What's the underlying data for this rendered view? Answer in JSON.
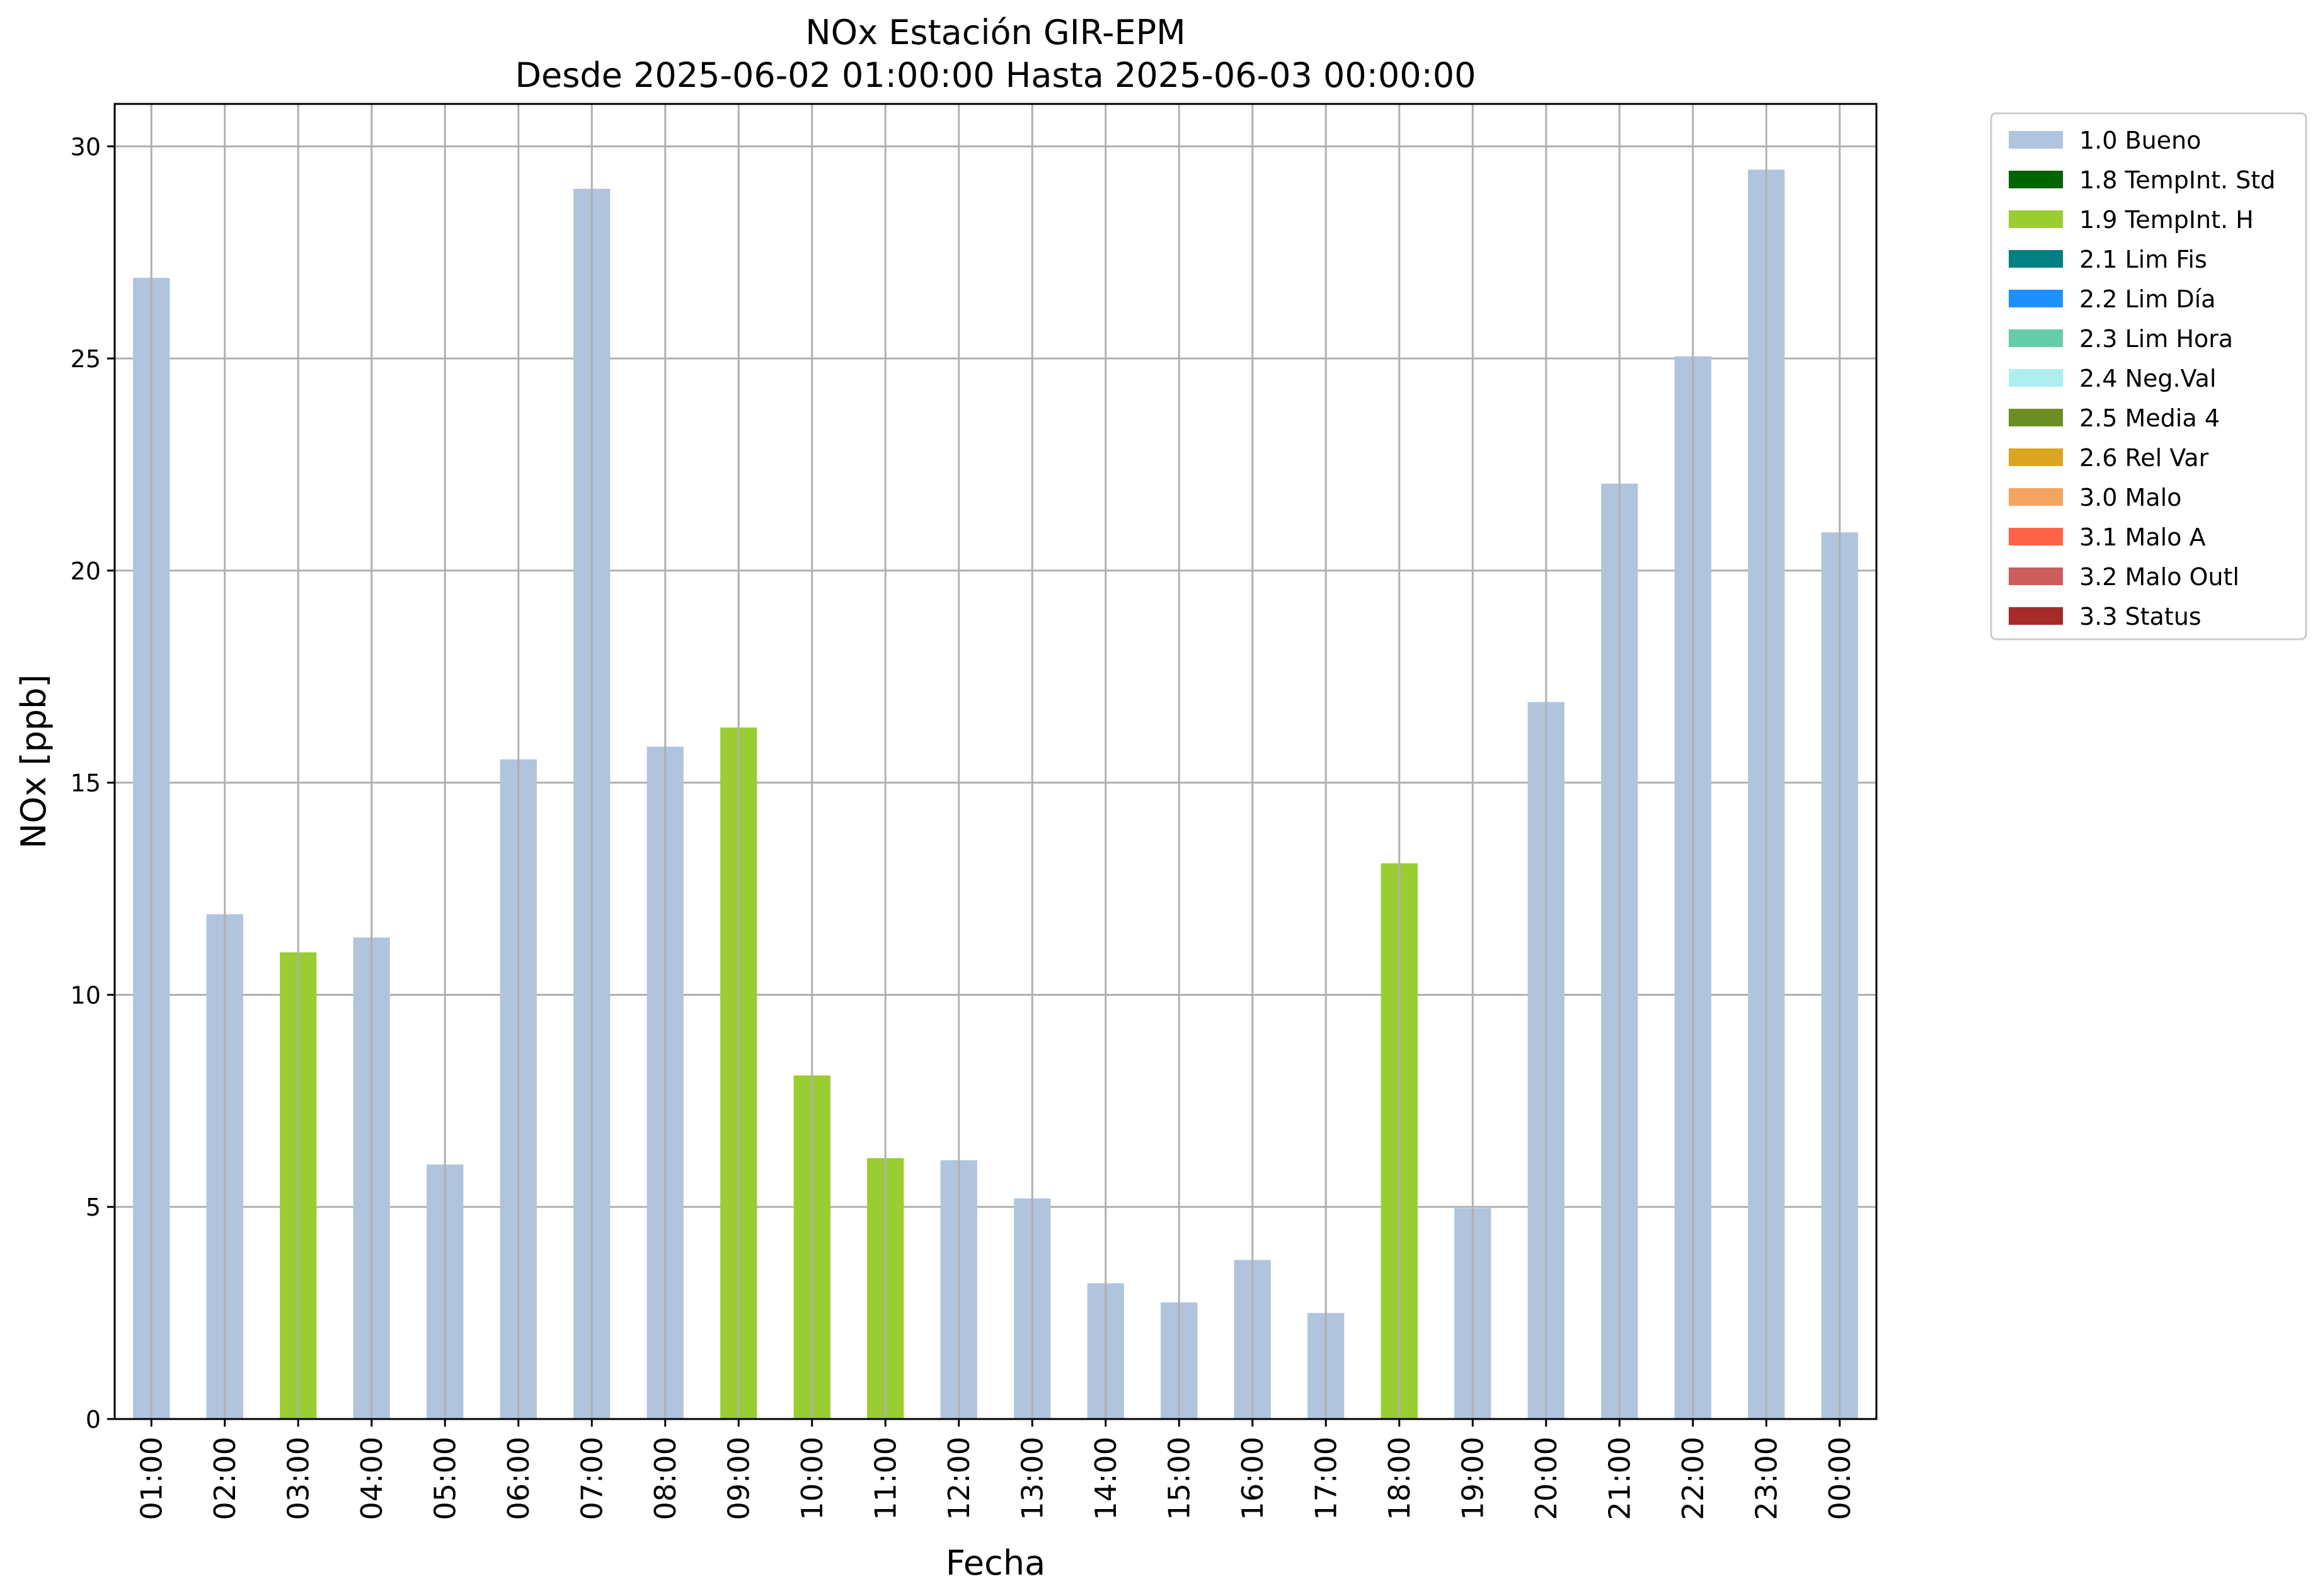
{
  "chart_data": {
    "type": "bar",
    "title": "NOx Estación GIR-EPM",
    "subtitle": "Desde 2025-06-02 01:00:00 Hasta 2025-06-03 00:00:00",
    "xlabel": "Fecha",
    "ylabel": "NOx [ppb]",
    "ylim": [
      0,
      31
    ],
    "yticks": [
      0,
      5,
      10,
      15,
      20,
      25,
      30
    ],
    "grid": true,
    "legend_placement": "outside-top-right",
    "categories": [
      "01:00",
      "02:00",
      "03:00",
      "04:00",
      "05:00",
      "06:00",
      "07:00",
      "08:00",
      "09:00",
      "10:00",
      "11:00",
      "12:00",
      "13:00",
      "14:00",
      "15:00",
      "16:00",
      "17:00",
      "18:00",
      "19:00",
      "20:00",
      "21:00",
      "22:00",
      "23:00",
      "00:00"
    ],
    "values": [
      26.9,
      11.9,
      11.0,
      11.35,
      6.0,
      15.55,
      29.0,
      15.85,
      16.3,
      8.1,
      6.15,
      6.1,
      5.2,
      3.2,
      2.75,
      3.75,
      2.5,
      13.1,
      4.97,
      16.9,
      22.05,
      25.05,
      29.45,
      20.9
    ],
    "flags": [
      "1.0 Bueno",
      "1.0 Bueno",
      "1.9 TempInt. H",
      "1.0 Bueno",
      "1.0 Bueno",
      "1.0 Bueno",
      "1.0 Bueno",
      "1.0 Bueno",
      "1.9 TempInt. H",
      "1.9 TempInt. H",
      "1.9 TempInt. H",
      "1.0 Bueno",
      "1.0 Bueno",
      "1.0 Bueno",
      "1.0 Bueno",
      "1.0 Bueno",
      "1.0 Bueno",
      "1.9 TempInt. H",
      "1.0 Bueno",
      "1.0 Bueno",
      "1.0 Bueno",
      "1.0 Bueno",
      "1.0 Bueno",
      "1.0 Bueno"
    ],
    "legend": [
      {
        "label": "1.0 Bueno",
        "color": "#b0c4de"
      },
      {
        "label": "1.8 TempInt. Std",
        "color": "#006400"
      },
      {
        "label": "1.9 TempInt. H",
        "color": "#9acd32"
      },
      {
        "label": "2.1 Lim Fis",
        "color": "#008080"
      },
      {
        "label": "2.2 Lim Día",
        "color": "#1e90ff"
      },
      {
        "label": "2.3 Lim Hora",
        "color": "#66cdaa"
      },
      {
        "label": "2.4 Neg.Val",
        "color": "#afeeee"
      },
      {
        "label": "2.5 Media 4",
        "color": "#6b8e23"
      },
      {
        "label": "2.6 Rel Var",
        "color": "#daa520"
      },
      {
        "label": "3.0 Malo",
        "color": "#f4a460"
      },
      {
        "label": "3.1 Malo A",
        "color": "#ff6347"
      },
      {
        "label": "3.2 Malo Outl",
        "color": "#cd5c5c"
      },
      {
        "label": "3.3 Status",
        "color": "#a52a2a"
      }
    ]
  }
}
